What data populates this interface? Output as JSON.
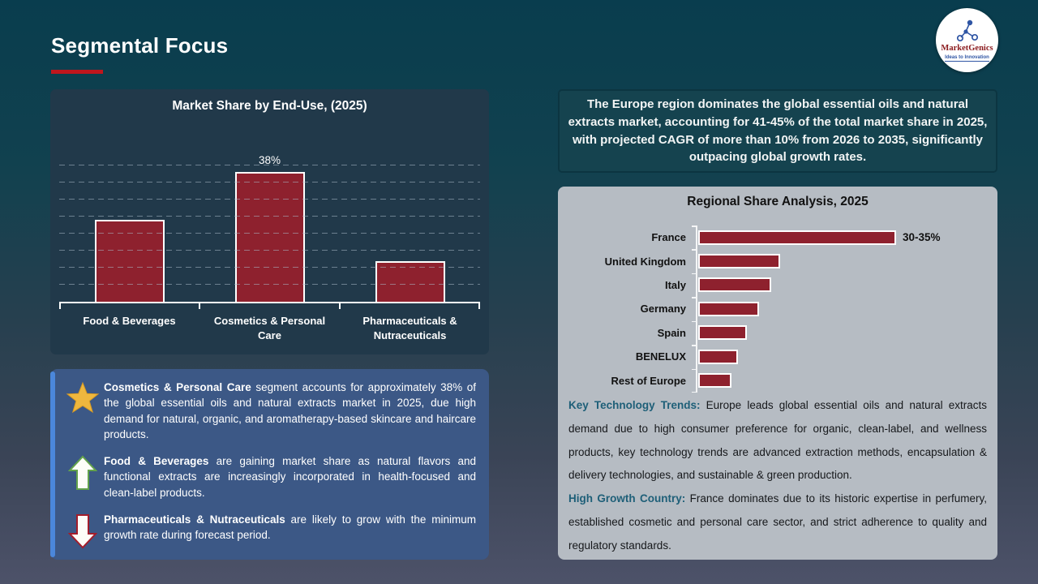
{
  "slide": {
    "title": "Segmental Focus",
    "logo": {
      "name": "MarketGenics",
      "tagline": "Ideas to Innovation"
    }
  },
  "colors": {
    "bar_red": "#8E212E",
    "accent_red": "#C0161D",
    "panel_navy": "#21394A",
    "insight_blue": "#3C5886",
    "insight_stripe": "#4B87DB",
    "gray_panel": "#B6BCC3",
    "teal_lead": "#1E5F78",
    "star_gold": "#EFB73E",
    "arrow_up_green": "#63A24B",
    "arrow_down_red": "#A31D2B"
  },
  "chart_data": [
    {
      "type": "bar",
      "title": "Market Share by End-Use, (2025)",
      "categories": [
        "Food & Beverages",
        "Cosmetics & Personal Care",
        "Pharmaceuticals & Nutraceuticals"
      ],
      "values": [
        24,
        38,
        12
      ],
      "unit": "%",
      "ylim": [
        0,
        40
      ],
      "gridline_step": 5,
      "grid": true,
      "data_labels": [
        null,
        "38%",
        null
      ],
      "legend": false
    },
    {
      "type": "bar",
      "orientation": "horizontal",
      "title": "Regional Share Analysis, 2025",
      "categories": [
        "France",
        "United Kingdom",
        "Italy",
        "Germany",
        "Spain",
        "BENELUX",
        "Rest of Europe"
      ],
      "values": [
        32.5,
        13.5,
        12,
        10,
        8,
        6.5,
        5.5
      ],
      "unit": "%",
      "data_labels": [
        "30-35%",
        null,
        null,
        null,
        null,
        null,
        null
      ],
      "grid": false,
      "legend": false
    }
  ],
  "europe_callout": "The Europe region dominates the global essential oils and natural extracts market, accounting for 41-45% of the total market share in 2025, with projected CAGR of more than 10% from 2026 to 2035, significantly outpacing global growth rates.",
  "insights": [
    {
      "icon": "star",
      "lead": "Cosmetics & Personal Care",
      "text": " segment accounts for approximately 38% of the global essential oils and natural extracts market in 2025, due high demand for natural, organic, and aromatherapy-based skincare and haircare products."
    },
    {
      "icon": "arrow-up",
      "lead": "Food & Beverages",
      "text": " are gaining market share as natural flavors and functional extracts are increasingly incorporated in health-focused and clean-label products."
    },
    {
      "icon": "arrow-down",
      "lead": "Pharmaceuticals & Nutraceuticals",
      "text": " are likely to grow with the minimum growth rate during forecast period."
    }
  ],
  "regional_notes": [
    {
      "lead": "Key Technology Trends:",
      "text": " Europe leads global essential oils and natural extracts demand due to high consumer preference for organic, clean-label, and wellness products, key technology trends are advanced extraction methods, encapsulation & delivery technologies, and sustainable & green production."
    },
    {
      "lead": "High Growth Country:",
      "text": " France dominates due to its historic expertise in perfumery, established cosmetic and personal care sector, and strict adherence to quality and regulatory standards."
    }
  ]
}
